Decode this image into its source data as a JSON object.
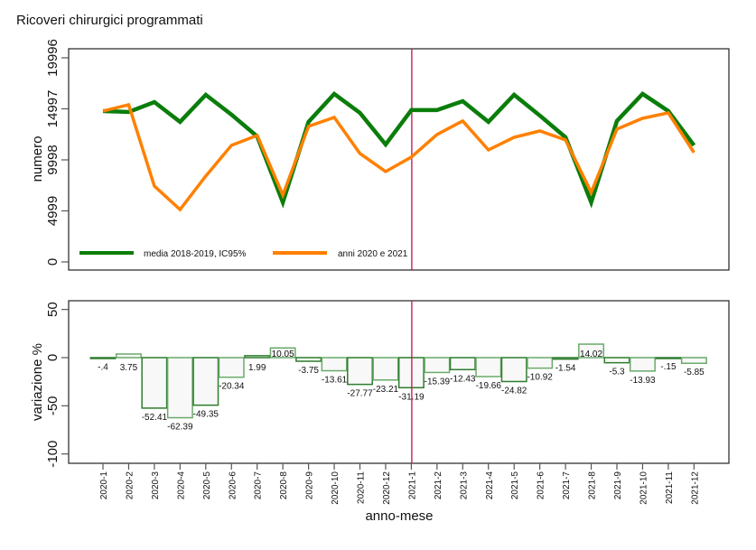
{
  "title": "Ricoveri chirurgici programmati",
  "chart_data": [
    {
      "type": "line",
      "panel": "top",
      "ylabel": "numero",
      "xlabel": "",
      "ylim": [
        0,
        19996
      ],
      "yticks": [
        0,
        4999,
        9998,
        14997,
        19996
      ],
      "ytick_labels": [
        "0",
        "4999",
        "9998",
        "14997",
        "19996"
      ],
      "categories": [
        "2020-1",
        "2020-2",
        "2020-3",
        "2020-4",
        "2020-5",
        "2020-6",
        "2020-7",
        "2020-8",
        "2020-9",
        "2020-10",
        "2020-11",
        "2020-12",
        "2021-1",
        "2021-2",
        "2021-3",
        "2021-4",
        "2021-5",
        "2021-6",
        "2021-7",
        "2021-8",
        "2021-9",
        "2021-10",
        "2021-11",
        "2021-12"
      ],
      "series": [
        {
          "name": "media 2018-2019, IC95%",
          "color": "#0a7d0a",
          "values": [
            14780,
            14690,
            15660,
            13720,
            16370,
            14430,
            12300,
            5840,
            13720,
            16460,
            14600,
            11500,
            14870,
            14870,
            15750,
            13720,
            16370,
            14340,
            12210,
            5840,
            13810,
            16460,
            14780,
            11420
          ]
        },
        {
          "name": "anni 2020 e 2021",
          "color": "#ff8000",
          "values": [
            14780,
            15400,
            7430,
            5130,
            8410,
            11420,
            12390,
            6550,
            13280,
            14160,
            10620,
            8850,
            10270,
            12480,
            13810,
            10970,
            12210,
            12830,
            11950,
            6810,
            13010,
            14070,
            14600,
            10710
          ]
        }
      ],
      "reference_line": {
        "category": "2021-1",
        "color": "#c0104a"
      },
      "legend": {
        "placement": "bottom-inside",
        "entries": [
          "media 2018-2019, IC95%",
          "anni 2020 e 2021"
        ]
      }
    },
    {
      "type": "bar",
      "panel": "bottom",
      "ylabel": "variazione %",
      "xlabel": "anno-mese",
      "ylim": [
        -100,
        50
      ],
      "yticks": [
        -100,
        -50,
        0,
        50
      ],
      "ytick_labels": [
        "-100",
        "-50",
        "0",
        "50"
      ],
      "categories": [
        "2020-1",
        "2020-2",
        "2020-3",
        "2020-4",
        "2020-5",
        "2020-6",
        "2020-7",
        "2020-8",
        "2020-9",
        "2020-10",
        "2020-11",
        "2020-12",
        "2021-1",
        "2021-2",
        "2021-3",
        "2021-4",
        "2021-5",
        "2021-6",
        "2021-7",
        "2021-8",
        "2021-9",
        "2021-10",
        "2021-11",
        "2021-12"
      ],
      "values": [
        -0.4,
        3.75,
        -52.41,
        -62.39,
        -49.35,
        -20.34,
        1.99,
        10.05,
        -3.75,
        -13.61,
        -27.77,
        -23.21,
        -31.19,
        -15.39,
        -12.43,
        -19.66,
        -24.82,
        -10.92,
        -1.54,
        14.02,
        -5.3,
        -13.93,
        -0.15,
        -5.85
      ],
      "value_labels": [
        "-.4",
        "3.75",
        "-52.41",
        "-62.39",
        "-49.35",
        "-20.34",
        "1.99",
        "10.05",
        "-3.75",
        "-13.61",
        "-27.77",
        "-23.21",
        "-31.19",
        "-15.39",
        "-12.43",
        "-19.66",
        "-24.82",
        "-10.92",
        "-1.54",
        "14.02",
        "-5.3",
        "-13.93",
        "-.15",
        "-5.85"
      ],
      "bar_color": "#2e7d2e",
      "bar_fill": "#f8f8f8",
      "reference_line": {
        "category": "2021-1",
        "color": "#c0104a"
      }
    }
  ]
}
